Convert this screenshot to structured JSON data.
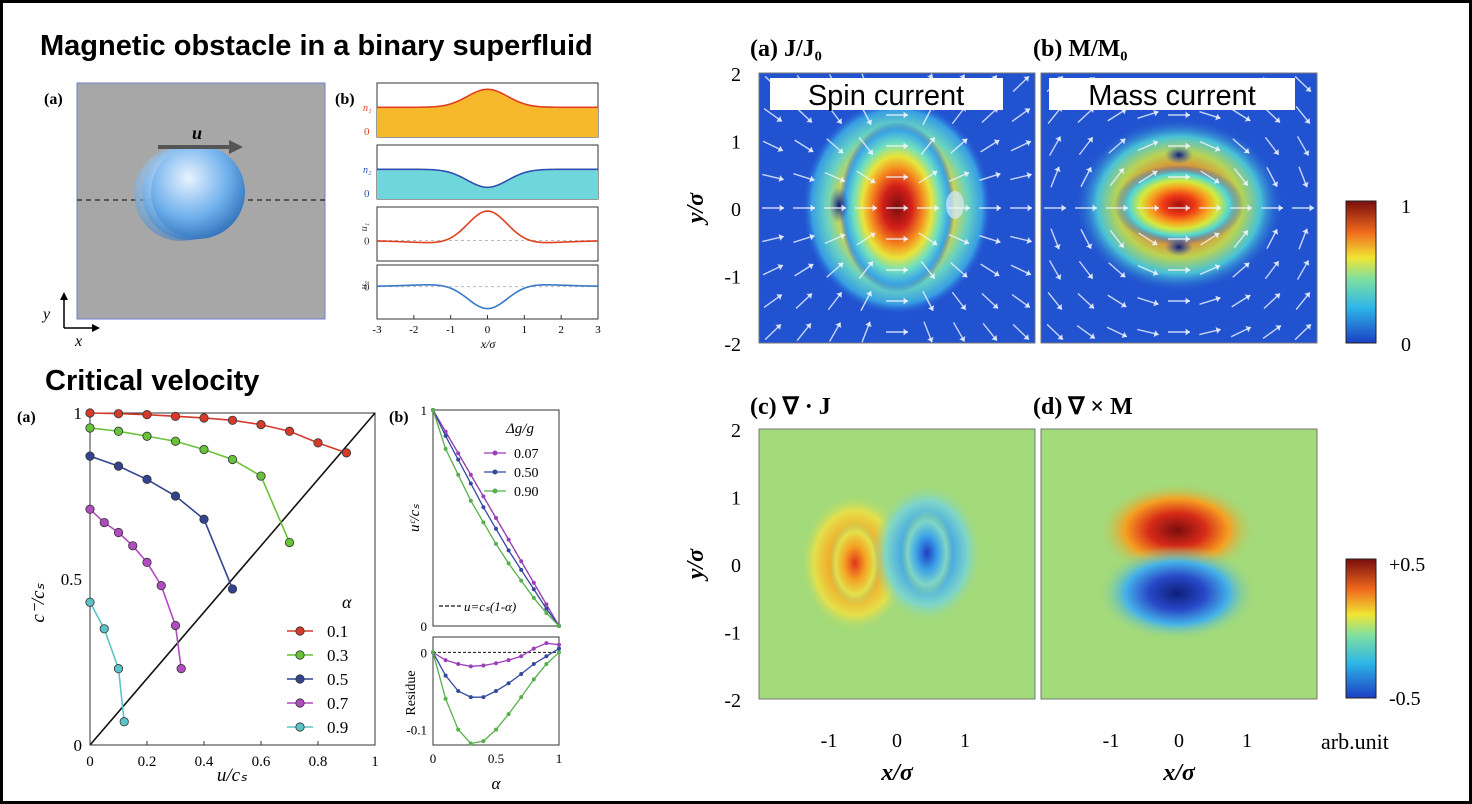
{
  "headings": {
    "magnetic": "Magnetic obstacle in a binary superfluid",
    "critical": "Critical velocity"
  },
  "panel_tl": {
    "label_a": "(a)",
    "label_b": "(b)",
    "u_label": "u",
    "axis_y": "y",
    "axis_x": "x",
    "profile_labels": [
      "n₁",
      "n₂",
      "u₁",
      "u₂"
    ],
    "profile_zero": "0",
    "xticks": [
      "-3",
      "-2",
      "-1",
      "0",
      "1",
      "2",
      "3"
    ],
    "xlabel": "x/σ"
  },
  "panel_bl": {
    "label_a": "(a)",
    "label_b": "(b)",
    "ylabel": "c⁻/cₛ",
    "xlabel": "u/cₛ",
    "yticks": [
      "0",
      "0.5",
      "1"
    ],
    "xticks": [
      "0",
      "0.2",
      "0.4",
      "0.6",
      "0.8",
      "1"
    ],
    "legend_title": "α",
    "b_ylabel": "uᶜ/cₛ",
    "b_legend_title": "Δg/g",
    "b_line_label": "u=cₛ(1-α)",
    "b_residue_label": "Residue",
    "b_xlabel": "α",
    "b_xticks": [
      "0",
      "0.5",
      "1"
    ],
    "b_upper_yticks": [
      "1",
      "0"
    ],
    "b_lower_yticks": [
      "0",
      "-0.1"
    ]
  },
  "chart_data": [
    {
      "type": "scatter",
      "xlabel": "u/cₛ",
      "ylabel": "c⁻/cₛ",
      "xlim": [
        0,
        1
      ],
      "ylim": [
        0,
        1
      ],
      "series": [
        {
          "name": "0.1",
          "color": "#d63b2a",
          "x": [
            0,
            0.1,
            0.2,
            0.3,
            0.4,
            0.5,
            0.6,
            0.7,
            0.8,
            0.9
          ],
          "y": [
            1.0,
            0.998,
            0.995,
            0.99,
            0.985,
            0.978,
            0.965,
            0.945,
            0.91,
            0.88
          ]
        },
        {
          "name": "0.3",
          "color": "#68c23a",
          "x": [
            0,
            0.1,
            0.2,
            0.3,
            0.4,
            0.5,
            0.6,
            0.7
          ],
          "y": [
            0.955,
            0.945,
            0.93,
            0.915,
            0.89,
            0.86,
            0.81,
            0.61
          ]
        },
        {
          "name": "0.5",
          "color": "#34438f",
          "x": [
            0,
            0.1,
            0.2,
            0.3,
            0.4,
            0.5
          ],
          "y": [
            0.87,
            0.84,
            0.8,
            0.75,
            0.68,
            0.47
          ]
        },
        {
          "name": "0.7",
          "color": "#b04bc0",
          "x": [
            0,
            0.05,
            0.1,
            0.15,
            0.2,
            0.25,
            0.3,
            0.32
          ],
          "y": [
            0.71,
            0.67,
            0.64,
            0.6,
            0.55,
            0.48,
            0.36,
            0.23
          ]
        },
        {
          "name": "0.9",
          "color": "#5cc3c6",
          "x": [
            0,
            0.05,
            0.1,
            0.12
          ],
          "y": [
            0.43,
            0.35,
            0.23,
            0.07
          ]
        }
      ],
      "reference_line": {
        "x": [
          0,
          1
        ],
        "y": [
          0,
          1
        ]
      }
    },
    {
      "type": "line",
      "ylabel": "uᶜ/cₛ",
      "xlabel": "α",
      "xlim": [
        0,
        1
      ],
      "ylim": [
        0,
        1
      ],
      "series": [
        {
          "name": "0.07",
          "color": "#9b3fb8",
          "x": [
            0,
            0.1,
            0.2,
            0.3,
            0.4,
            0.5,
            0.6,
            0.7,
            0.8,
            0.9,
            1.0
          ],
          "y": [
            1.0,
            0.9,
            0.8,
            0.7,
            0.6,
            0.5,
            0.4,
            0.3,
            0.2,
            0.1,
            0
          ]
        },
        {
          "name": "0.50",
          "color": "#3548a0",
          "x": [
            0,
            0.1,
            0.2,
            0.3,
            0.4,
            0.5,
            0.6,
            0.7,
            0.8,
            0.9,
            1.0
          ],
          "y": [
            1.0,
            0.88,
            0.77,
            0.66,
            0.55,
            0.45,
            0.35,
            0.26,
            0.17,
            0.08,
            0
          ]
        },
        {
          "name": "0.90",
          "color": "#55b04a",
          "x": [
            0,
            0.1,
            0.2,
            0.3,
            0.4,
            0.5,
            0.6,
            0.7,
            0.8,
            0.9,
            1.0
          ],
          "y": [
            1.0,
            0.82,
            0.7,
            0.58,
            0.48,
            0.38,
            0.29,
            0.21,
            0.13,
            0.06,
            0
          ]
        }
      ],
      "reference_line": {
        "name": "u=cₛ(1-α)",
        "x": [
          0,
          1
        ],
        "y": [
          1,
          0
        ]
      }
    },
    {
      "type": "line",
      "ylabel": "Residue",
      "xlabel": "α",
      "xlim": [
        0,
        1
      ],
      "ylim": [
        -0.12,
        0.02
      ],
      "series": [
        {
          "name": "0.07",
          "color": "#9b3fb8",
          "x": [
            0,
            0.1,
            0.2,
            0.3,
            0.4,
            0.5,
            0.6,
            0.7,
            0.8,
            0.9,
            1.0
          ],
          "y": [
            0,
            -0.01,
            -0.015,
            -0.018,
            -0.017,
            -0.014,
            -0.01,
            -0.005,
            0.005,
            0.012,
            0.01
          ]
        },
        {
          "name": "0.50",
          "color": "#3548a0",
          "x": [
            0,
            0.1,
            0.2,
            0.3,
            0.4,
            0.5,
            0.6,
            0.7,
            0.8,
            0.9,
            1.0
          ],
          "y": [
            0,
            -0.03,
            -0.05,
            -0.058,
            -0.058,
            -0.05,
            -0.04,
            -0.028,
            -0.015,
            -0.005,
            0.005
          ]
        },
        {
          "name": "0.90",
          "color": "#55b04a",
          "x": [
            0,
            0.1,
            0.2,
            0.3,
            0.4,
            0.5,
            0.6,
            0.7,
            0.8,
            0.9,
            1.0
          ],
          "y": [
            0,
            -0.06,
            -0.1,
            -0.118,
            -0.115,
            -0.1,
            -0.08,
            -0.058,
            -0.035,
            -0.015,
            0
          ]
        }
      ]
    }
  ],
  "panel_right": {
    "title_a": "(a) J/J₀",
    "title_b": "(b) M/M₀",
    "title_c": "(c) ∇ · J",
    "title_d": "(d) ∇ × M",
    "box_spin": "Spin current",
    "box_mass": "Mass current",
    "yticks": [
      "2",
      "1",
      "0",
      "-1",
      "-2"
    ],
    "xticks": [
      "-1",
      "0",
      "1"
    ],
    "ylabel": "y/σ",
    "xlabel": "x/σ",
    "cbar_top": [
      "1",
      "0"
    ],
    "cbar_bottom": [
      "+0.5",
      "-0.5"
    ],
    "cbar_unit": "arb.unit",
    "colors": {
      "jet_low": "#1f3ec0",
      "jet_high": "#7a0d0d",
      "field_bg": "#a3da7a"
    }
  }
}
